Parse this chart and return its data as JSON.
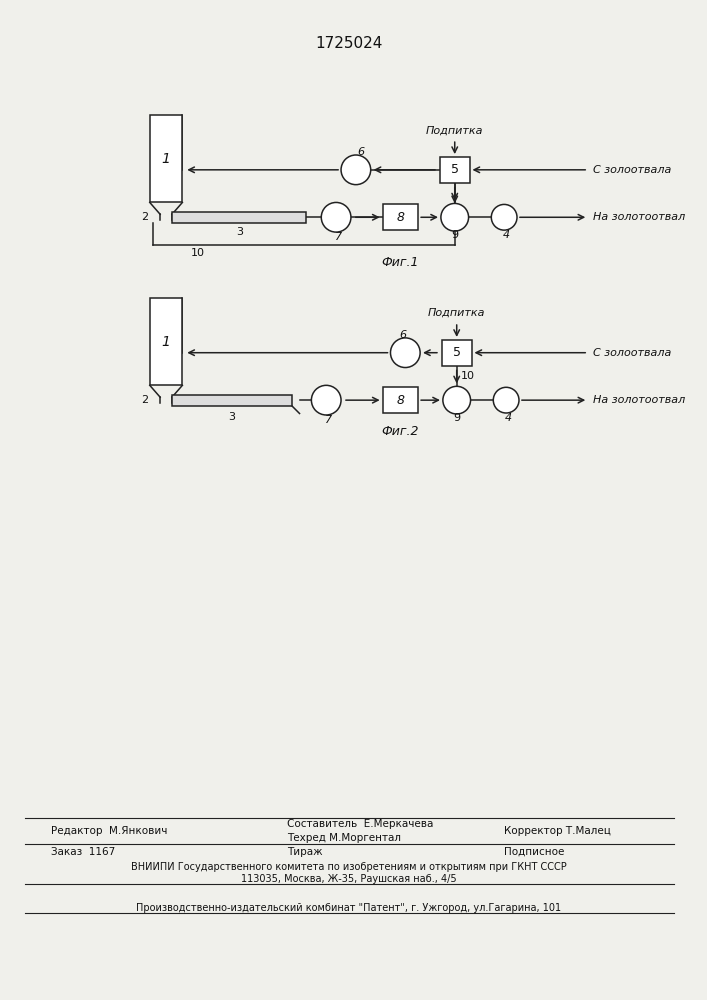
{
  "title": "1725024",
  "fig1_label": "Фиг.1",
  "fig2_label": "Фиг.2",
  "podpitka": "Подпитка",
  "s_zolootv": "С золоотвала",
  "na_zolootv": "На золотоотвал",
  "editor_line": "Редактор  М.Янкович",
  "sostavitel_line": "Составитель  Е.Меркачева",
  "tekhred_line": "Техред М.Моргентал",
  "korrektor_line": "Корректор Т.Малец",
  "zakaz_line": "Заказ  1167",
  "tirazh_line": "Тираж",
  "podpisnoe_line": "Подписное",
  "vniiipi_line": "ВНИИПИ Государственного комитета по изобретениям и открытиям при ГКНТ СССР",
  "address_line": "113035, Москва, Ж-35, Раушская наб., 4/5",
  "proizv_line": "Производственно-издательский комбинат \"Патент\", г. Ужгород, ул.Гагарина, 101",
  "bg_color": "#f0f0eb",
  "line_color": "#222222",
  "text_color": "#111111"
}
